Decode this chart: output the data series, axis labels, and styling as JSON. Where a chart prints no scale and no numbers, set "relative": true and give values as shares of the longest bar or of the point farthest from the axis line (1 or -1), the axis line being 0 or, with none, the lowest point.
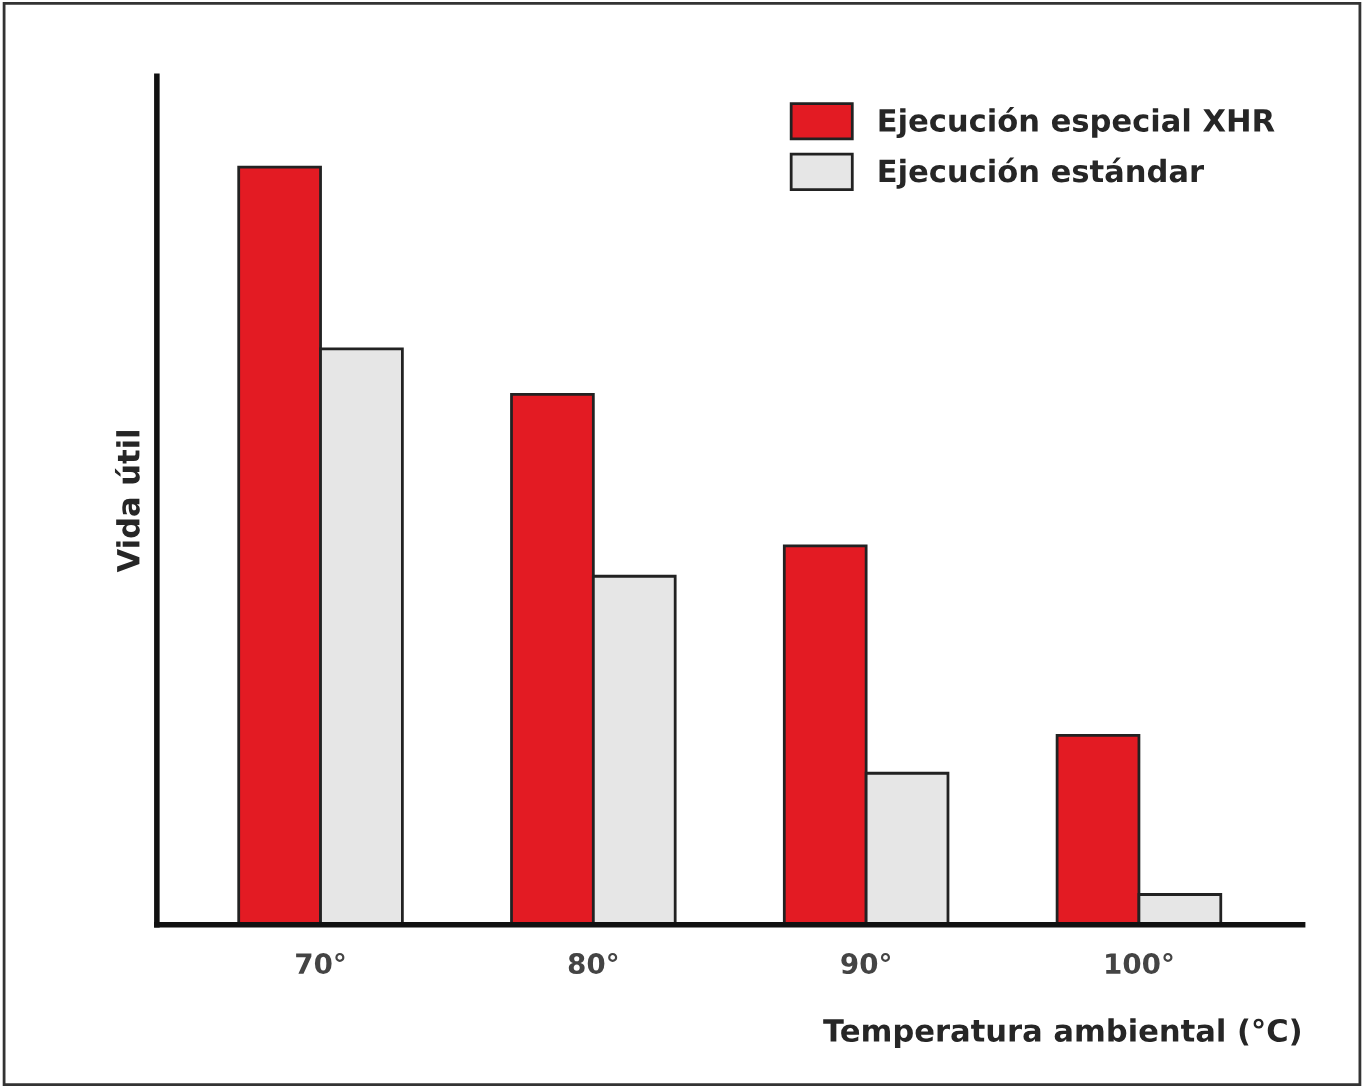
{
  "chart_data": {
    "type": "bar",
    "relative": true,
    "ylabel": "Vida útil",
    "xlabel": "Temperatura ambiental (°C)",
    "categories": [
      "70°",
      "80°",
      "90°",
      "100°"
    ],
    "series": [
      {
        "name": "Ejecución especial XHR",
        "color": "#e31b23",
        "values": [
          1,
          0.7,
          0.5,
          0.25
        ]
      },
      {
        "name": "Ejecución estándar",
        "color": "#e6e6e6",
        "values": [
          0.76,
          0.46,
          0.2,
          0.04
        ]
      }
    ],
    "legend": "top right",
    "grid": false
  }
}
